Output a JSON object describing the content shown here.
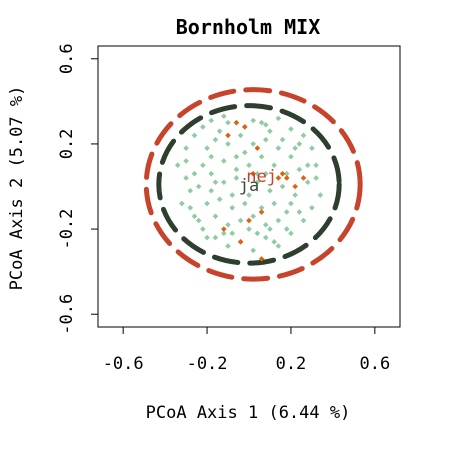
{
  "chart_data": {
    "type": "scatter",
    "title": "Bornholm MIX",
    "xlabel": "PCoA Axis 1 (6.44 %)",
    "ylabel": "PCoA Axis 2 (5.07 %)",
    "xlim": [
      -0.72,
      0.72
    ],
    "ylim": [
      -0.66,
      0.66
    ],
    "x_ticks": [
      -0.6,
      -0.2,
      0.2,
      0.6
    ],
    "x_tick_labels": [
      "-0.6",
      "-0.2",
      "0.2",
      "0.6"
    ],
    "y_ticks": [
      -0.6,
      -0.2,
      0.2,
      0.6
    ],
    "y_tick_labels": [
      "-0.6",
      "-0.2",
      "0.2",
      "0.6"
    ],
    "grid": false,
    "colors": {
      "ja_points": "#8fcca2",
      "nej_points": "#e0620f",
      "ja_ellipse": "#2e3f2e",
      "nej_ellipse": "#c8432b",
      "frame": "#000000"
    },
    "group_labels": [
      {
        "text": "ja",
        "x": 0.0,
        "y": -0.02,
        "color": "#3b4a3b"
      },
      {
        "text": "nej",
        "x": 0.06,
        "y": 0.02,
        "color": "#c8432b"
      }
    ],
    "ellipses": [
      {
        "group": "ja",
        "center": [
          0.0,
          0.01
        ],
        "rx": 0.43,
        "ry": 0.37,
        "color": "#2e3f2e"
      },
      {
        "group": "nej",
        "center": [
          0.02,
          0.01
        ],
        "rx": 0.51,
        "ry": 0.445,
        "color": "#c8432b"
      }
    ],
    "series": [
      {
        "group": "ja",
        "color": "#8fcca2",
        "points": [
          [
            -0.3,
            0.18
          ],
          [
            -0.26,
            0.24
          ],
          [
            -0.22,
            0.28
          ],
          [
            -0.18,
            0.31
          ],
          [
            -0.12,
            0.33
          ],
          [
            -0.06,
            0.3
          ],
          [
            0.02,
            0.31
          ],
          [
            0.08,
            0.29
          ],
          [
            0.14,
            0.32
          ],
          [
            0.2,
            0.27
          ],
          [
            0.26,
            0.24
          ],
          [
            0.3,
            0.18
          ],
          [
            -0.34,
            0.1
          ],
          [
            -0.3,
            0.04
          ],
          [
            -0.28,
            -0.02
          ],
          [
            -0.32,
            -0.08
          ],
          [
            -0.26,
            -0.14
          ],
          [
            -0.22,
            -0.2
          ],
          [
            -0.16,
            -0.24
          ],
          [
            -0.1,
            -0.28
          ],
          [
            -0.04,
            -0.26
          ],
          [
            0.02,
            -0.3
          ],
          [
            0.08,
            -0.24
          ],
          [
            0.14,
            -0.28
          ],
          [
            0.2,
            -0.22
          ],
          [
            0.26,
            -0.16
          ],
          [
            0.3,
            -0.1
          ],
          [
            0.34,
            -0.04
          ],
          [
            0.32,
            0.04
          ],
          [
            0.28,
            0.1
          ],
          [
            -0.2,
            0.18
          ],
          [
            -0.16,
            0.22
          ],
          [
            -0.1,
            0.2
          ],
          [
            -0.04,
            0.24
          ],
          [
            0.02,
            0.2
          ],
          [
            0.08,
            0.22
          ],
          [
            0.14,
            0.18
          ],
          [
            0.2,
            0.14
          ],
          [
            0.24,
            0.08
          ],
          [
            -0.22,
            0.1
          ],
          [
            -0.18,
            0.06
          ],
          [
            -0.12,
            0.12
          ],
          [
            -0.06,
            0.14
          ],
          [
            0.0,
            0.1
          ],
          [
            0.06,
            0.14
          ],
          [
            0.12,
            0.1
          ],
          [
            0.18,
            0.06
          ],
          [
            -0.24,
            0.0
          ],
          [
            -0.18,
            -0.02
          ],
          [
            -0.12,
            0.02
          ],
          [
            -0.06,
            0.04
          ],
          [
            0.04,
            0.02
          ],
          [
            0.1,
            -0.02
          ],
          [
            0.16,
            0.0
          ],
          [
            0.22,
            -0.04
          ],
          [
            -0.2,
            -0.08
          ],
          [
            -0.14,
            -0.06
          ],
          [
            -0.08,
            -0.1
          ],
          [
            -0.02,
            -0.08
          ],
          [
            0.06,
            -0.1
          ],
          [
            0.12,
            -0.08
          ],
          [
            0.18,
            -0.12
          ],
          [
            -0.16,
            -0.14
          ],
          [
            -0.1,
            -0.18
          ],
          [
            -0.04,
            -0.16
          ],
          [
            0.02,
            -0.14
          ],
          [
            0.08,
            -0.18
          ],
          [
            0.14,
            -0.16
          ],
          [
            -0.08,
            -0.22
          ],
          [
            0.04,
            -0.22
          ],
          [
            0.1,
            -0.2
          ],
          [
            -0.26,
            0.06
          ],
          [
            0.28,
            0.02
          ],
          [
            -0.14,
            0.26
          ],
          [
            0.1,
            0.26
          ],
          [
            -0.02,
            0.16
          ],
          [
            0.16,
            0.22
          ],
          [
            -0.28,
            -0.1
          ],
          [
            0.24,
            -0.12
          ],
          [
            -0.12,
            -0.22
          ],
          [
            0.0,
            -0.2
          ],
          [
            -0.06,
            0.08
          ],
          [
            0.04,
            0.06
          ],
          [
            -0.18,
            0.14
          ],
          [
            0.22,
            0.18
          ],
          [
            -0.24,
            -0.16
          ],
          [
            0.18,
            -0.2
          ],
          [
            -0.02,
            0.28
          ],
          [
            0.06,
            0.3
          ],
          [
            -0.3,
            0.12
          ],
          [
            0.32,
            0.1
          ],
          [
            -0.1,
            0.3
          ],
          [
            0.12,
            -0.26
          ],
          [
            -0.2,
            -0.24
          ],
          [
            0.24,
            0.2
          ],
          [
            -0.08,
            -0.04
          ],
          [
            0.0,
            -0.04
          ],
          [
            0.08,
            0.06
          ],
          [
            -0.16,
            0.02
          ],
          [
            0.2,
            -0.08
          ]
        ]
      },
      {
        "group": "nej",
        "color": "#e0620f",
        "points": [
          [
            -0.02,
            0.28
          ],
          [
            -0.06,
            0.3
          ],
          [
            0.02,
            0.06
          ],
          [
            0.14,
            0.04
          ],
          [
            0.16,
            0.06
          ],
          [
            0.18,
            0.04
          ],
          [
            0.06,
            -0.12
          ],
          [
            0.0,
            -0.16
          ],
          [
            -0.12,
            -0.2
          ],
          [
            -0.04,
            -0.26
          ],
          [
            0.06,
            -0.34
          ],
          [
            0.26,
            0.04
          ],
          [
            0.22,
            0.0
          ],
          [
            -0.1,
            0.24
          ],
          [
            0.04,
            0.18
          ]
        ]
      }
    ]
  }
}
